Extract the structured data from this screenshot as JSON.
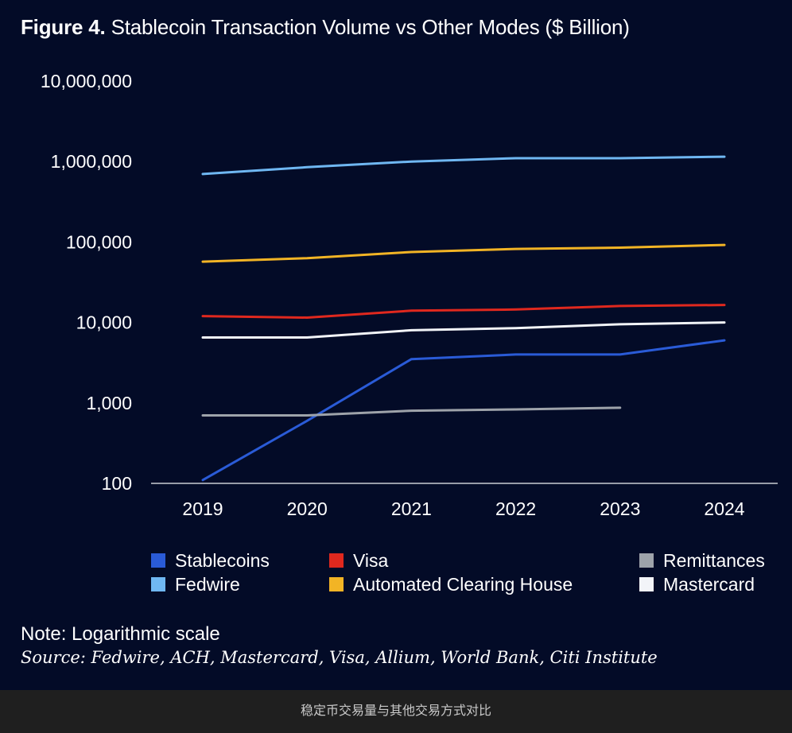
{
  "figure": {
    "title_label": "Figure 4.",
    "title_text": "Stablecoin Transaction Volume vs Other Modes ($ Billion)",
    "note": "Note: Logarithmic scale",
    "source": "Source: Fedwire, ACH, Mastercard, Visa, Allium, World Bank, Citi Institute"
  },
  "caption": "稳定币交易量与其他交易方式对比",
  "chart_data": {
    "type": "line",
    "title": "Figure 4. Stablecoin Transaction Volume vs Other Modes ($ Billion)",
    "xlabel": "",
    "ylabel": "",
    "yscale": "log",
    "ylim": [
      100,
      10000000
    ],
    "grid": false,
    "legend_position": "bottom",
    "x": [
      "2019",
      "2020",
      "2021",
      "2022",
      "2023",
      "2024"
    ],
    "y_ticks": [
      100,
      1000,
      10000,
      100000,
      1000000,
      10000000
    ],
    "y_tick_labels": [
      "100",
      "1,000",
      "10,000",
      "100,000",
      "1,000,000",
      "10,000,000"
    ],
    "series": [
      {
        "name": "Stablecoins",
        "color": "#2a5bd7",
        "values": [
          110,
          600,
          3500,
          4000,
          4000,
          6000
        ]
      },
      {
        "name": "Fedwire",
        "color": "#6fb7f2",
        "values": [
          700000,
          850000,
          1000000,
          1100000,
          1100000,
          1150000
        ]
      },
      {
        "name": "Visa",
        "color": "#e0281e",
        "values": [
          12000,
          11500,
          14000,
          14500,
          16000,
          16500
        ]
      },
      {
        "name": "Automated Clearing House",
        "color": "#f2b425",
        "values": [
          57000,
          63000,
          75000,
          82000,
          85000,
          92000
        ]
      },
      {
        "name": "Remittances",
        "color": "#9ea3aa",
        "values": [
          700,
          700,
          800,
          830,
          870,
          null
        ]
      },
      {
        "name": "Mastercard",
        "color": "#f2f4f8",
        "values": [
          6500,
          6500,
          8000,
          8500,
          9500,
          10000
        ]
      }
    ]
  }
}
